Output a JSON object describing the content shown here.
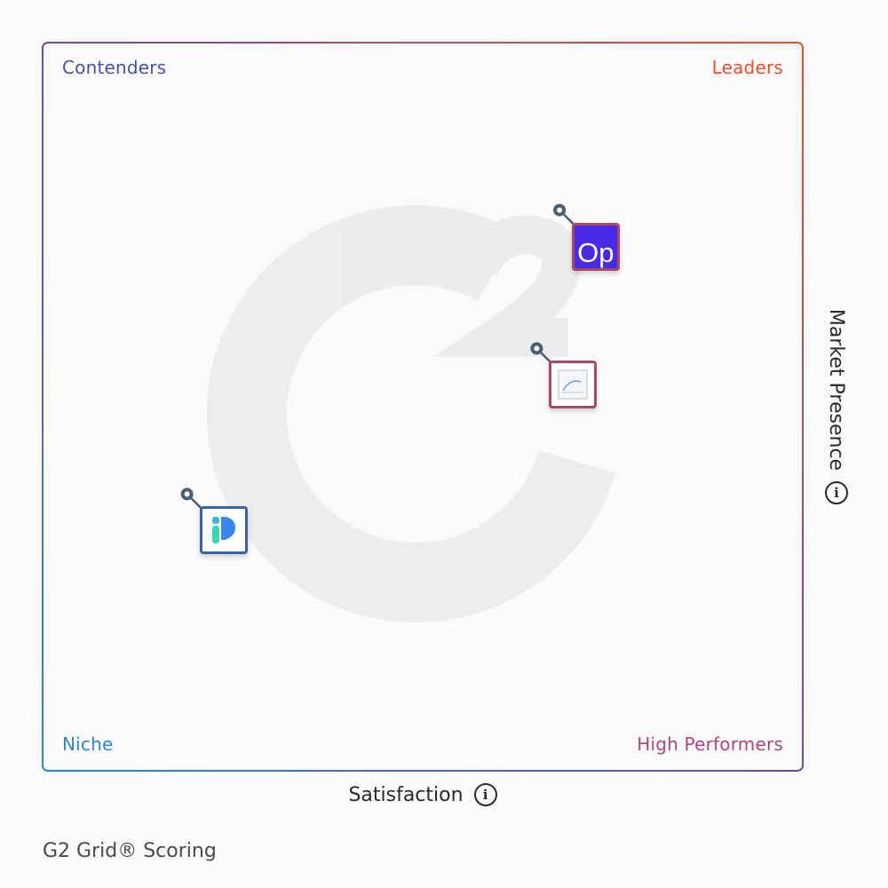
{
  "quadrants": {
    "contenders": "Contenders",
    "leaders": "Leaders",
    "niche": "Niche",
    "high_performers": "High Performers"
  },
  "axes": {
    "x_label": "Satisfaction",
    "y_label": "Market Presence",
    "info_icon": "info-icon"
  },
  "footer": {
    "title": "G2 Grid® Scoring"
  },
  "colors": {
    "contenders": "#4552a8",
    "leaders": "#e8502f",
    "niche": "#2f86cc",
    "high_performers": "#a8487c",
    "op_logo_bg": "#4a28e8"
  },
  "chart_data": {
    "type": "scatter",
    "x_axis": "Satisfaction",
    "y_axis": "Market Presence",
    "xlim": [
      0,
      10
    ],
    "ylim": [
      0,
      10
    ],
    "grid": true,
    "points": [
      {
        "name": "",
        "logo_text": "Op",
        "x": 6.8,
        "y": 7.7,
        "quadrant": "Leaders"
      },
      {
        "name": "",
        "logo_text": "",
        "x": 6.5,
        "y": 5.8,
        "quadrant": "Leaders"
      },
      {
        "name": "",
        "logo_text": "",
        "x": 1.9,
        "y": 3.8,
        "quadrant": "Niche"
      }
    ]
  }
}
